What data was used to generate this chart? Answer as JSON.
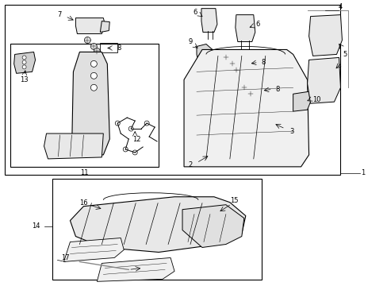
{
  "bg_color": "#ffffff",
  "line_color": "#000000",
  "fig_width": 4.89,
  "fig_height": 3.6,
  "dpi": 100,
  "fs": 6.0
}
